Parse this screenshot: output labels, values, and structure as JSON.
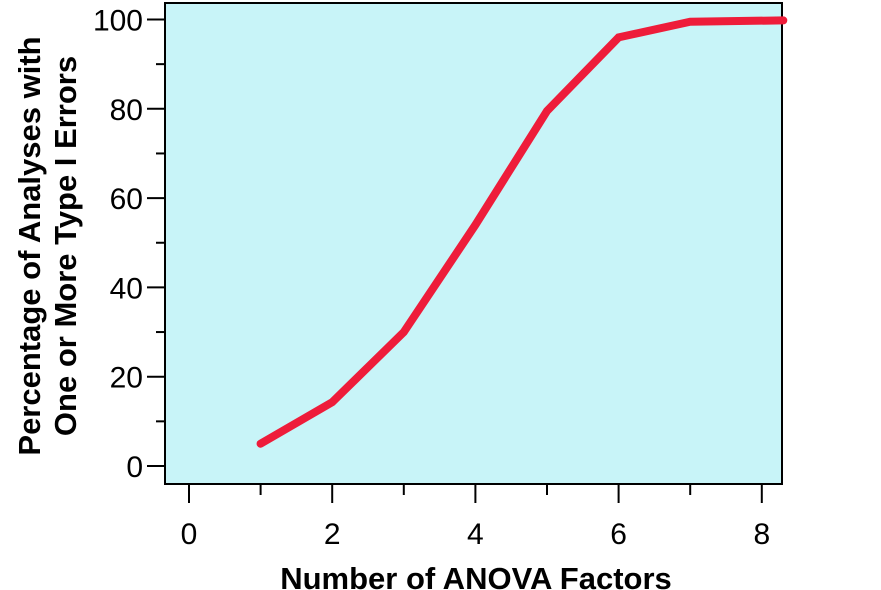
{
  "chart_data": {
    "type": "line",
    "xlabel": "Number of ANOVA Factors",
    "ylabel_lines": [
      "Percentage of Analyses with",
      "One or More Type I Errors"
    ],
    "xlim": [
      0,
      8.3
    ],
    "ylim": [
      0,
      100
    ],
    "x_ticks": [
      0,
      2,
      4,
      6,
      8
    ],
    "y_ticks": [
      0,
      20,
      40,
      60,
      80,
      100
    ],
    "grid": false,
    "legend": "none",
    "series": [
      {
        "color": "#ee1c3a",
        "points": [
          {
            "x": 1,
            "y": 5
          },
          {
            "x": 2,
            "y": 14.3
          },
          {
            "x": 3,
            "y": 30
          },
          {
            "x": 4,
            "y": 54
          },
          {
            "x": 5,
            "y": 79.5
          },
          {
            "x": 6,
            "y": 96
          },
          {
            "x": 7,
            "y": 99.5
          },
          {
            "x": 8.3,
            "y": 99.8
          }
        ]
      }
    ],
    "colors": {
      "plot_background": "#c8f4f8",
      "line": "#ee1c3a",
      "axis": "#000000"
    }
  }
}
